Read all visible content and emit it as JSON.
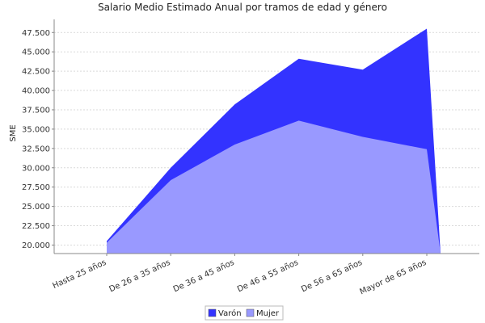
{
  "chart_data": {
    "type": "area",
    "title": "Salario Medio Estimado Anual por tramos de edad y género",
    "xlabel": "",
    "ylabel": "SME",
    "categories": [
      "Hasta 25 años",
      "De 26 a 35 años",
      "De 36 a 45 años",
      "De 46 a 55 años",
      "De 56 a 65 años",
      "Mayor de 65 años"
    ],
    "series": [
      {
        "name": "Varón",
        "values": [
          20500,
          30000,
          38200,
          44100,
          42700,
          48000
        ],
        "color": "#3333ff"
      },
      {
        "name": "Mujer",
        "values": [
          20300,
          28400,
          33000,
          36100,
          34000,
          32400
        ],
        "color": "#9999ff"
      }
    ],
    "ylim": [
      18900,
      49200
    ],
    "yticks": [
      "20.000",
      "22.500",
      "25.000",
      "27.500",
      "30.000",
      "32.500",
      "35.000",
      "37.500",
      "40.000",
      "42.500",
      "45.000",
      "47.500"
    ],
    "ytick_values": [
      20000,
      22500,
      25000,
      27500,
      30000,
      32500,
      35000,
      37500,
      40000,
      42500,
      45000,
      47500
    ],
    "grid": true,
    "legend_position": "bottom"
  }
}
